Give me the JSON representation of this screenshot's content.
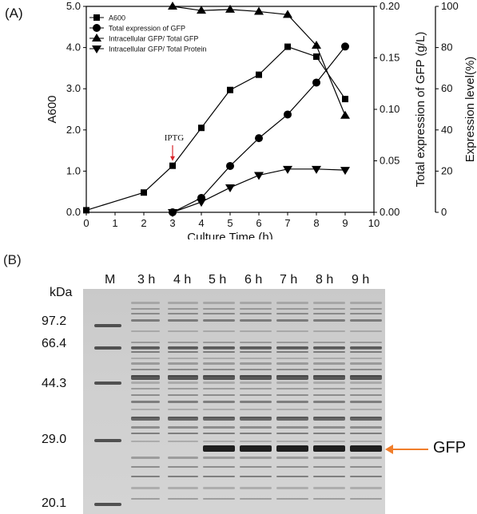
{
  "panel_a_label": "(A)",
  "panel_b_label": "(B)",
  "chart_data": {
    "type": "line",
    "xlabel": "Culture Time (h)",
    "xlim": [
      0,
      10
    ],
    "xticks": [
      "0",
      "1",
      "2",
      "3",
      "4",
      "5",
      "6",
      "7",
      "8",
      "9",
      "10"
    ],
    "y_left_label": "A600",
    "y_left_ticks": [
      "0.0",
      "1.0",
      "2.0",
      "3.0",
      "4.0",
      "5.0"
    ],
    "y_left_lim": [
      0,
      5
    ],
    "y_right1_label": "Total expression of GFP (g/L)",
    "y_right1_ticks": [
      "0.00",
      "0.05",
      "0.10",
      "0.15",
      "0.20"
    ],
    "y_right1_lim": [
      0,
      0.2
    ],
    "y_right2_label": "Expression level(%)",
    "y_right2_ticks": [
      "0",
      "20",
      "40",
      "60",
      "80",
      "100"
    ],
    "y_right2_lim": [
      0,
      100
    ],
    "annotation": "IPTG",
    "annotation_x": 3,
    "legend_position": "top-left",
    "series": [
      {
        "name": "A600",
        "axis": "left",
        "marker": "square",
        "x": [
          0,
          2,
          3,
          4,
          5,
          6,
          7,
          8,
          9
        ],
        "y": [
          0.05,
          0.48,
          1.13,
          2.05,
          2.97,
          3.34,
          4.02,
          3.78,
          2.75
        ]
      },
      {
        "name": "Total expression of GFP",
        "axis": "right1",
        "marker": "circle",
        "x": [
          3,
          4,
          5,
          6,
          7,
          8,
          9
        ],
        "y": [
          0.0,
          0.014,
          0.045,
          0.072,
          0.095,
          0.126,
          0.161
        ]
      },
      {
        "name": "Intracellular GFP/ Total GFP",
        "axis": "right2",
        "marker": "triangle-up",
        "x": [
          3,
          4,
          5,
          6,
          7,
          8,
          9
        ],
        "y": [
          100,
          98,
          98.5,
          97.5,
          96,
          81,
          47
        ]
      },
      {
        "name": "Intracellular GFP/ Total Protein",
        "axis": "right2",
        "marker": "triangle-down",
        "x": [
          3,
          4,
          5,
          6,
          7,
          8,
          9
        ],
        "y": [
          0,
          5,
          12,
          18,
          21,
          21,
          20.5
        ]
      }
    ]
  },
  "gel": {
    "kda_label": "kDa",
    "lanes": [
      "M",
      "3 h",
      "4 h",
      "5 h",
      "6 h",
      "7 h",
      "8 h",
      "9 h"
    ],
    "markers": [
      "97.2",
      "66.4",
      "44.3",
      "29.0",
      "20.1"
    ],
    "gfp_label": "GFP",
    "arrow_color": "#f07d2a"
  }
}
